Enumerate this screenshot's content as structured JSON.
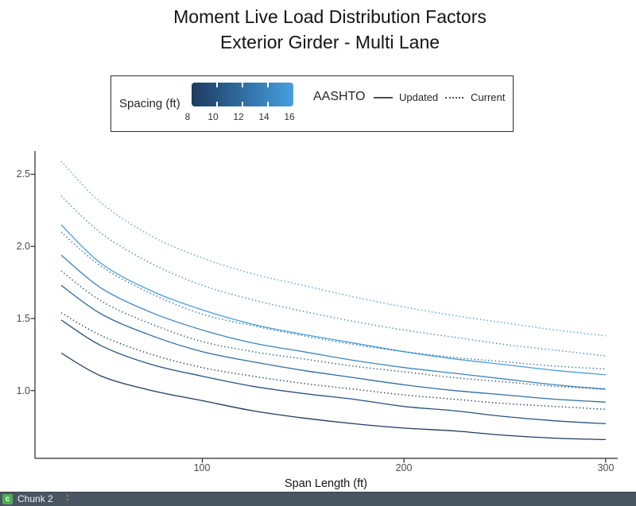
{
  "title": {
    "line1": "Moment Live Load Distribution Factors",
    "line2": "Exterior Girder - Multi Lane"
  },
  "legend": {
    "spacing_label": "Spacing (ft)",
    "spacing_ticks": [
      "8",
      "10",
      "12",
      "14",
      "16"
    ],
    "gradient_start": "#1d3a5f",
    "gradient_end": "#45a0e1",
    "aashto_label": "AASHTO",
    "updated_label": "Updated",
    "current_label": "Current"
  },
  "axes": {
    "x_label": "Span Length (ft)",
    "x_tick_labels": [
      "100",
      "200",
      "300"
    ],
    "y_tick_labels": [
      "1.0",
      "1.5",
      "2.0",
      "2.5"
    ]
  },
  "chart_data": {
    "type": "line",
    "title": "Moment Live Load Distribution Factors",
    "subtitle": "Exterior Girder - Multi Lane",
    "xlabel": "Span Length (ft)",
    "ylabel": "",
    "xlim": [
      17,
      306
    ],
    "ylim": [
      0.53,
      2.69
    ],
    "x_ticks": [
      100,
      200,
      300
    ],
    "y_ticks": [
      1.0,
      1.5,
      2.0,
      2.5
    ],
    "grid": false,
    "legend_position": "top",
    "color_scale": {
      "variable": "Spacing (ft)",
      "domain": [
        8,
        16
      ],
      "start": "#1d3a5f",
      "end": "#45a0e1"
    },
    "linetype": {
      "Updated": "solid",
      "Current": "dotted"
    },
    "x": [
      30,
      50,
      75,
      100,
      125,
      150,
      175,
      200,
      225,
      250,
      275,
      300
    ],
    "series": [
      {
        "name": "16 ft - Updated",
        "spacing": 16,
        "aashto": "Updated",
        "style": "solid",
        "color": "#45a0e1",
        "values": [
          2.15,
          1.88,
          1.69,
          1.56,
          1.46,
          1.39,
          1.33,
          1.27,
          1.22,
          1.18,
          1.14,
          1.11
        ]
      },
      {
        "name": "14 ft - Updated",
        "spacing": 14,
        "aashto": "Updated",
        "style": "solid",
        "color": "#3b86c0",
        "values": [
          1.94,
          1.71,
          1.54,
          1.42,
          1.33,
          1.27,
          1.21,
          1.16,
          1.12,
          1.08,
          1.04,
          1.01
        ]
      },
      {
        "name": "12 ft - Updated",
        "spacing": 12,
        "aashto": "Updated",
        "style": "solid",
        "color": "#316ca0",
        "values": [
          1.73,
          1.53,
          1.38,
          1.27,
          1.2,
          1.14,
          1.09,
          1.04,
          1.0,
          0.97,
          0.94,
          0.92
        ]
      },
      {
        "name": "10 ft - Updated",
        "spacing": 10,
        "aashto": "Updated",
        "style": "solid",
        "color": "#27537f",
        "values": [
          1.49,
          1.31,
          1.18,
          1.1,
          1.03,
          0.98,
          0.94,
          0.89,
          0.86,
          0.82,
          0.79,
          0.77
        ]
      },
      {
        "name": "8 ft - Updated",
        "spacing": 8,
        "aashto": "Updated",
        "style": "solid",
        "color": "#1d3a5f",
        "values": [
          1.26,
          1.1,
          1.0,
          0.93,
          0.86,
          0.81,
          0.77,
          0.74,
          0.72,
          0.69,
          0.67,
          0.66
        ]
      },
      {
        "name": "16 ft - Current",
        "spacing": 16,
        "aashto": "Current",
        "style": "dotted",
        "color": "#45a0e1",
        "values": [
          2.59,
          2.3,
          2.07,
          1.92,
          1.81,
          1.73,
          1.65,
          1.58,
          1.52,
          1.47,
          1.42,
          1.38
        ]
      },
      {
        "name": "14 ft - Current",
        "spacing": 14,
        "aashto": "Current",
        "style": "dotted",
        "color": "#3b86c0",
        "values": [
          2.35,
          2.09,
          1.88,
          1.73,
          1.63,
          1.55,
          1.48,
          1.42,
          1.37,
          1.32,
          1.28,
          1.24
        ]
      },
      {
        "name": "12 ft - Current",
        "spacing": 12,
        "aashto": "Current",
        "style": "dotted",
        "color": "#316ca0",
        "values": [
          2.1,
          1.86,
          1.67,
          1.53,
          1.45,
          1.38,
          1.32,
          1.27,
          1.23,
          1.2,
          1.17,
          1.15
        ]
      },
      {
        "name": "10 ft - Current",
        "spacing": 10,
        "aashto": "Current",
        "style": "dotted",
        "color": "#27537f",
        "values": [
          1.83,
          1.62,
          1.46,
          1.34,
          1.27,
          1.22,
          1.17,
          1.13,
          1.09,
          1.06,
          1.03,
          1.01
        ]
      },
      {
        "name": "8 ft - Current",
        "spacing": 8,
        "aashto": "Current",
        "style": "dotted",
        "color": "#1d3a5f",
        "values": [
          1.54,
          1.38,
          1.25,
          1.16,
          1.1,
          1.05,
          1.01,
          0.97,
          0.94,
          0.91,
          0.89,
          0.87
        ]
      }
    ]
  },
  "status_bar": {
    "chunk_badge": "c",
    "chunk_label": "Chunk 2",
    "bar_color": "#4a5562",
    "badge_color": "#4caf50"
  }
}
